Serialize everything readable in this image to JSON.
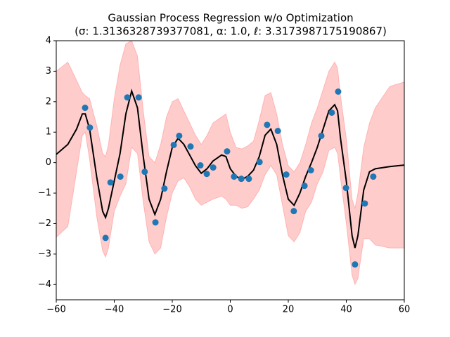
{
  "chart_data": {
    "type": "line",
    "title": "Gaussian Process Regression w/o Optimization",
    "subtitle": "(σ: 1.3136328739377081, α: 1.0, ℓ: 3.3173987175190867)",
    "xlim": [
      -60,
      60
    ],
    "ylim": [
      -4.5,
      4
    ],
    "xticks": [
      {
        "value": -60,
        "label": "−60"
      },
      {
        "value": -40,
        "label": "−40"
      },
      {
        "value": -20,
        "label": "−20"
      },
      0,
      20,
      40,
      60
    ],
    "yticks": [
      {
        "value": -4,
        "label": "−4"
      },
      {
        "value": -3,
        "label": "−3"
      },
      {
        "value": -2,
        "label": "−2"
      },
      {
        "value": -1,
        "label": "−1"
      },
      0,
      1,
      2,
      3,
      4
    ],
    "x": [
      -60,
      -56,
      -53,
      -51,
      -50,
      -48.5,
      -46,
      -44,
      -43,
      -42,
      -40,
      -38,
      -36,
      -34,
      -32,
      -30,
      -28,
      -26,
      -24,
      -22,
      -20,
      -18,
      -16,
      -14,
      -12,
      -10,
      -8,
      -6,
      -3,
      -1.5,
      0,
      2,
      4,
      6,
      8,
      10,
      12,
      14,
      16,
      18,
      20,
      22,
      24,
      26,
      28,
      30,
      32,
      34,
      36,
      37,
      38,
      40,
      42,
      43,
      44,
      46,
      48,
      50,
      55,
      60
    ],
    "series": [
      {
        "color": "#000000",
        "values": [
          0.27,
          0.6,
          1.1,
          1.6,
          1.6,
          1.1,
          -0.5,
          -1.6,
          -1.8,
          -1.5,
          -0.6,
          0.3,
          1.6,
          2.35,
          1.8,
          0.2,
          -1.2,
          -1.7,
          -1.2,
          -0.3,
          0.5,
          0.8,
          0.6,
          0.25,
          -0.1,
          -0.35,
          -0.2,
          0.05,
          0.25,
          0.2,
          -0.2,
          -0.45,
          -0.55,
          -0.45,
          -0.25,
          0.2,
          0.9,
          1.1,
          0.6,
          -0.4,
          -1.2,
          -1.4,
          -1.0,
          -0.45,
          0,
          0.5,
          1.1,
          1.7,
          1.9,
          1.7,
          0.8,
          -0.6,
          -2.4,
          -2.8,
          -2.4,
          -0.9,
          -0.3,
          -0.2,
          -0.13,
          -0.08
        ]
      }
    ],
    "band": {
      "color": "#ff0000",
      "upper": [
        3.0,
        3.3,
        2.7,
        2.3,
        2.2,
        2.1,
        1.2,
        0.3,
        0.2,
        0.6,
        2.1,
        3.2,
        3.9,
        4.0,
        3.5,
        1.7,
        0.2,
        0,
        0.6,
        1.5,
        2.0,
        2.1,
        1.7,
        1.3,
        0.9,
        0.6,
        0.9,
        1.3,
        1.5,
        1.6,
        1.0,
        0.5,
        0.45,
        0.55,
        0.7,
        1.4,
        2.2,
        2.3,
        1.6,
        0.6,
        -0.1,
        -0.3,
        0.0,
        0.6,
        1.3,
        1.8,
        2.4,
        3.0,
        3.3,
        3.1,
        2.2,
        0.8,
        -1.2,
        -1.5,
        -1.0,
        0.5,
        1.3,
        1.8,
        2.5,
        2.65
      ],
      "lower": [
        -2.45,
        -2.1,
        -0.3,
        0.9,
        1.0,
        0.1,
        -1.8,
        -2.9,
        -3.1,
        -2.8,
        -1.6,
        -1.1,
        -0.7,
        0.5,
        0.3,
        -1.3,
        -2.6,
        -3.0,
        -2.8,
        -1.8,
        -1.0,
        -0.6,
        -0.5,
        -0.8,
        -1.2,
        -1.4,
        -1.3,
        -1.2,
        -1.1,
        -1.2,
        -1.4,
        -1.4,
        -1.5,
        -1.45,
        -1.2,
        -0.9,
        -0.4,
        -0.1,
        -0.4,
        -1.4,
        -2.4,
        -2.6,
        -2.3,
        -1.6,
        -1.3,
        -0.7,
        -0.3,
        0.4,
        0.5,
        0.3,
        -0.5,
        -2.0,
        -3.7,
        -4.0,
        -3.8,
        -2.5,
        -2.5,
        -2.7,
        -2.8,
        -2.8
      ]
    },
    "points": {
      "color": "#1f77b4",
      "x": [
        -50.06,
        -48.4,
        -43.0,
        -41.3,
        -37.9,
        -35.5,
        -31.6,
        -29.5,
        -25.8,
        -22.7,
        -19.5,
        -17.6,
        -13.7,
        -10.3,
        -8.1,
        -5.9,
        -1.1,
        1.3,
        3.8,
        6.4,
        10.1,
        12.7,
        16.4,
        19.3,
        21.9,
        25.6,
        27.8,
        31.4,
        35.0,
        37.2,
        39.9,
        43.0,
        46.4,
        49.3
      ],
      "y": [
        1.8,
        1.15,
        -2.47,
        -0.65,
        -0.46,
        2.14,
        2.14,
        -0.3,
        -1.96,
        -0.85,
        0.58,
        0.88,
        0.53,
        -0.09,
        -0.37,
        -0.16,
        0.37,
        -0.46,
        -0.53,
        -0.53,
        0.02,
        1.24,
        1.04,
        -0.39,
        -1.59,
        -0.76,
        -0.25,
        0.88,
        1.64,
        2.33,
        -0.83,
        -3.34,
        -1.34,
        -0.46
      ]
    }
  }
}
